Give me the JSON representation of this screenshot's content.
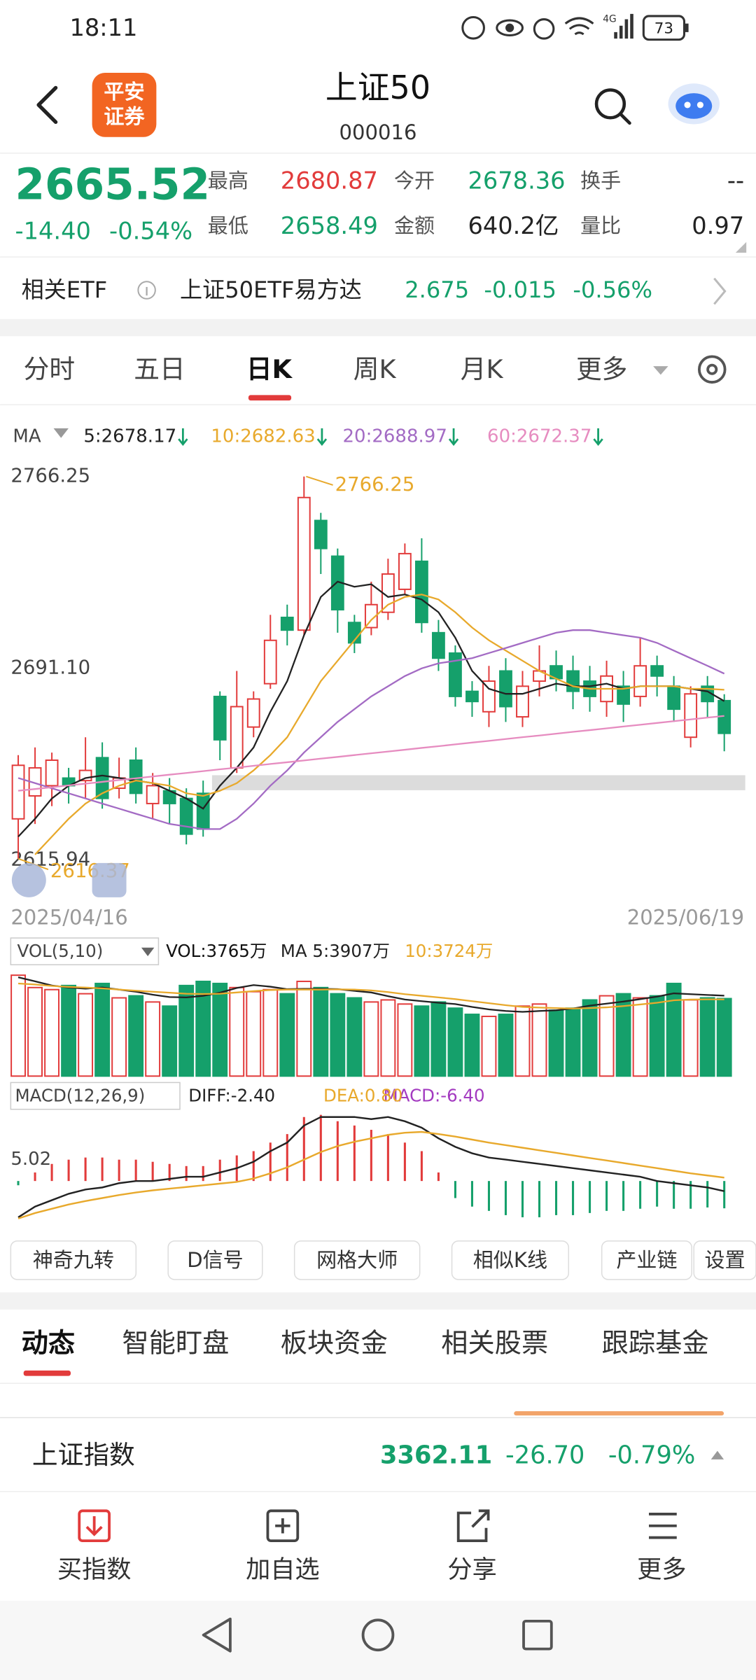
{
  "status_bar": {
    "time": "18:11",
    "network": "4G",
    "battery": "73"
  },
  "header": {
    "logo": [
      "平安",
      "证券"
    ],
    "title": "上证50",
    "code": "000016"
  },
  "quote": {
    "price": "2665.52",
    "change": "-14.40",
    "change_pct": "-0.54%",
    "fields": [
      {
        "label": "最高",
        "value": "2680.87"
      },
      {
        "label": "今开",
        "value": "2678.36"
      },
      {
        "label": "换手",
        "value": "--"
      },
      {
        "label": "最低",
        "value": "2658.49"
      },
      {
        "label": "金额",
        "value": "640.2亿"
      },
      {
        "label": "量比",
        "value": "0.97"
      }
    ]
  },
  "etf": {
    "label": "相关ETF",
    "name": "上证50ETF易方达",
    "price": "2.675",
    "change": "-0.015",
    "change_pct": "-0.56%"
  },
  "period_tabs": [
    "分时",
    "五日",
    "日K",
    "周K",
    "月K",
    "更多"
  ],
  "chart_data": {
    "type": "candlestick",
    "up_color": "#e23b3b",
    "down_color": "#15a06b",
    "ma_label": "MA",
    "categories": [
      "2025/04/16",
      null,
      null,
      null,
      null,
      null,
      null,
      null,
      null,
      null,
      null,
      null,
      null,
      null,
      null,
      null,
      null,
      null,
      null,
      null,
      null,
      null,
      null,
      null,
      null,
      null,
      null,
      null,
      null,
      null,
      null,
      null,
      null,
      null,
      null,
      null,
      null,
      null,
      null,
      null,
      null,
      null,
      "2025/06/19"
    ],
    "open": [
      2632,
      2641,
      2645,
      2648,
      2647,
      2656,
      2644,
      2655,
      2638,
      2643,
      2640,
      2642,
      2680,
      2652,
      2668,
      2685,
      2711,
      2706,
      2749,
      2735,
      2709,
      2707,
      2713,
      2722,
      2733,
      2705,
      2697,
      2682,
      2674,
      2690,
      2672,
      2686,
      2692,
      2690,
      2686,
      2678,
      2684,
      2680,
      2692,
      2684,
      2664,
      2684,
      2678.36
    ],
    "high": [
      2657,
      2660,
      2658,
      2652,
      2664,
      2662,
      2656,
      2660,
      2650,
      2648,
      2644,
      2647,
      2682,
      2690,
      2682,
      2712,
      2716,
      2766.25,
      2752,
      2738,
      2712,
      2725,
      2734,
      2740,
      2742,
      2710,
      2700,
      2686,
      2692,
      2695,
      2690,
      2700,
      2698,
      2696,
      2692,
      2694,
      2690,
      2703,
      2696,
      2688,
      2684,
      2688,
      2680.87
    ],
    "low": [
      2616.37,
      2630,
      2637,
      2638,
      2640,
      2636,
      2640,
      2638,
      2632,
      2630,
      2622,
      2625,
      2655,
      2650,
      2664,
      2683,
      2700,
      2704,
      2728,
      2705,
      2697,
      2704,
      2710,
      2720,
      2705,
      2690,
      2676,
      2672,
      2668,
      2670,
      2668,
      2680,
      2682,
      2675,
      2674,
      2672,
      2670,
      2676,
      2680,
      2670,
      2660,
      2672,
      2658.49
    ],
    "close": [
      2653,
      2652,
      2655,
      2645,
      2651,
      2640,
      2648,
      2642,
      2645,
      2638,
      2626,
      2628,
      2663,
      2676,
      2679,
      2702,
      2706,
      2758,
      2738,
      2714,
      2701,
      2716,
      2728,
      2736,
      2709,
      2695,
      2680,
      2678,
      2686,
      2676,
      2684,
      2690,
      2687,
      2682,
      2680,
      2688,
      2677,
      2692,
      2688,
      2675,
      2681,
      2678,
      2665.52
    ],
    "ylim": [
      2615.94,
      2766.25
    ],
    "yticks": [
      2615.94,
      {
        "value": 2691.1,
        "label": "2691.10"
      },
      2766.25
    ],
    "grid": false,
    "ma": [
      {
        "name": "5:2678.17",
        "color": "#222222",
        "values": [
          2625,
          2632,
          2640,
          2645,
          2648,
          2649,
          2648,
          2647,
          2646,
          2643,
          2640,
          2636,
          2645,
          2652,
          2660,
          2674,
          2686,
          2704,
          2719,
          2725,
          2723,
          2724,
          2719,
          2720,
          2718,
          2713,
          2703,
          2690,
          2683,
          2681,
          2681,
          2683,
          2685,
          2684,
          2684,
          2685,
          2683,
          2684,
          2684,
          2684,
          2683,
          2682,
          2678.17
        ]
      },
      {
        "name": "10:2682.63",
        "color": "#e8a92c",
        "values": [
          null,
          2618,
          2625,
          2632,
          2638,
          2642,
          2645,
          2647,
          2646,
          2645,
          2642,
          2641,
          2643,
          2646,
          2651,
          2657,
          2664,
          2675,
          2686,
          2694,
          2702,
          2710,
          2716,
          2719,
          2720,
          2718,
          2713,
          2707,
          2702,
          2698,
          2694,
          2690,
          2687,
          2684,
          2683,
          2683,
          2683,
          2684,
          2684,
          2684,
          2683,
          2683,
          2682.63
        ]
      },
      {
        "name": "20:2688.97",
        "color": "#a36bc4",
        "values": [
          2648,
          2646,
          2644,
          2642,
          2640,
          2638,
          2636,
          2634,
          2632,
          2630,
          2629,
          2628,
          2628,
          2632,
          2638,
          2645,
          2651,
          2658,
          2664,
          2670,
          2675,
          2680,
          2684,
          2688,
          2691,
          2693,
          2694,
          2695,
          2697,
          2699,
          2701,
          2703,
          2705,
          2706,
          2706,
          2705,
          2704,
          2703,
          2701,
          2698,
          2695,
          2692,
          2688.97
        ]
      },
      {
        "name": "60:2672.37",
        "color": "#e68cc0",
        "values": [
          2643,
          2643.7,
          2644.4,
          2645.1,
          2645.8,
          2646.5,
          2647.2,
          2647.9,
          2648.6,
          2649.3,
          2650,
          2650.7,
          2651.4,
          2652.1,
          2652.8,
          2653.5,
          2654.2,
          2654.9,
          2655.6,
          2656.3,
          2657,
          2657.7,
          2658.4,
          2659.1,
          2659.8,
          2660.5,
          2661.2,
          2661.9,
          2662.6,
          2663.3,
          2664,
          2664.7,
          2665.4,
          2666.1,
          2666.8,
          2667.5,
          2668.2,
          2668.9,
          2669.6,
          2670.3,
          2671,
          2671.7,
          2672.37
        ]
      }
    ],
    "volume": {
      "label": "VOL(5,10)",
      "title": "VOL:3765万",
      "ylim": [
        0,
        5200
      ],
      "values": [
        4900,
        4300,
        4200,
        4400,
        4000,
        4500,
        3800,
        3900,
        3600,
        3400,
        4400,
        4600,
        4500,
        4300,
        4100,
        4200,
        4000,
        4600,
        4300,
        4000,
        3800,
        3600,
        3700,
        3500,
        3400,
        3600,
        3300,
        3000,
        2900,
        3000,
        3400,
        3500,
        3200,
        3300,
        3700,
        3900,
        4000,
        3800,
        3900,
        4500,
        3700,
        3800,
        3765
      ],
      "ma": [
        {
          "name": "MA 5:3907万",
          "color": "#222222",
          "values": [
            4800,
            4600,
            4400,
            4300,
            4250,
            4300,
            4200,
            4100,
            3950,
            3840,
            3820,
            3900,
            4050,
            4280,
            4420,
            4340,
            4220,
            4240,
            4240,
            4220,
            4140,
            4060,
            3880,
            3720,
            3640,
            3560,
            3500,
            3360,
            3240,
            3160,
            3120,
            3160,
            3200,
            3280,
            3420,
            3520,
            3620,
            3740,
            3860,
            4020,
            3980,
            3940,
            3907
          ]
        },
        {
          "name": "10:3724万",
          "color": "#e8a92c",
          "values": [
            4500,
            4450,
            4380,
            4330,
            4300,
            4260,
            4200,
            4150,
            4100,
            4050,
            4000,
            3990,
            4000,
            4060,
            4130,
            4180,
            4200,
            4200,
            4200,
            4210,
            4200,
            4160,
            4080,
            3980,
            3900,
            3820,
            3740,
            3640,
            3540,
            3440,
            3360,
            3330,
            3300,
            3280,
            3300,
            3340,
            3400,
            3480,
            3560,
            3680,
            3720,
            3730,
            3724
          ]
        }
      ]
    },
    "macd": {
      "label": "MACD(12,26,9)",
      "ylim": [
        -9.29,
        15.8
      ],
      "yticks": [
        5.02
      ],
      "histogram": {
        "name": "MACD:-6.40",
        "values": [
          -1,
          2,
          4,
          5,
          5.5,
          5.5,
          5,
          5,
          4.5,
          4,
          3.5,
          3.5,
          5,
          6,
          7,
          9,
          11,
          15,
          15.5,
          14,
          13,
          12,
          11,
          9,
          7,
          2,
          -4,
          -6,
          -7,
          -8,
          -8.5,
          -8.5,
          -8,
          -8,
          -7.5,
          -7,
          -7,
          -6.5,
          -6,
          -6.5,
          -6.5,
          -6.2,
          -6.4
        ]
      },
      "lines": [
        {
          "name": "DIFF:-2.40",
          "color": "#222222",
          "values": [
            -8.5,
            -6,
            -4.5,
            -3,
            -2,
            -1.5,
            -0.5,
            0,
            0,
            0.5,
            1,
            1,
            2,
            3,
            4.5,
            7,
            9,
            13,
            15,
            15,
            15,
            14.5,
            15,
            14,
            12.5,
            10,
            8,
            6.5,
            5.5,
            5,
            4.5,
            4,
            3.5,
            3,
            2.5,
            2,
            1.5,
            1,
            0,
            -0.5,
            -1,
            -1.5,
            -2.4
          ]
        },
        {
          "name": "DEA:0.80",
          "color": "#e8a92c",
          "values": [
            -8.8,
            -7.5,
            -6.5,
            -5.5,
            -4.7,
            -4,
            -3.3,
            -2.7,
            -2.2,
            -1.8,
            -1.4,
            -1,
            -0.6,
            -0.2,
            0.6,
            1.8,
            3.2,
            5,
            6.8,
            8.2,
            9.2,
            10,
            10.8,
            11.3,
            11.5,
            11,
            10.4,
            9.7,
            9,
            8.4,
            7.8,
            7.2,
            6.6,
            6,
            5.4,
            4.8,
            4.2,
            3.6,
            3,
            2.4,
            1.8,
            1.3,
            0.8
          ]
        }
      ]
    }
  },
  "tools": [
    "神奇九转",
    "D信号",
    "网格大师",
    "相似K线",
    "产业链",
    "设置"
  ],
  "info_tabs": [
    "动态",
    "智能盯盘",
    "板块资金",
    "相关股票",
    "跟踪基金"
  ],
  "index_row": {
    "name": "上证指数",
    "price": "3362.11",
    "change": "-26.70",
    "change_pct": "-0.79%"
  },
  "bottom_nav": [
    "买指数",
    "加自选",
    "分享",
    "更多"
  ]
}
